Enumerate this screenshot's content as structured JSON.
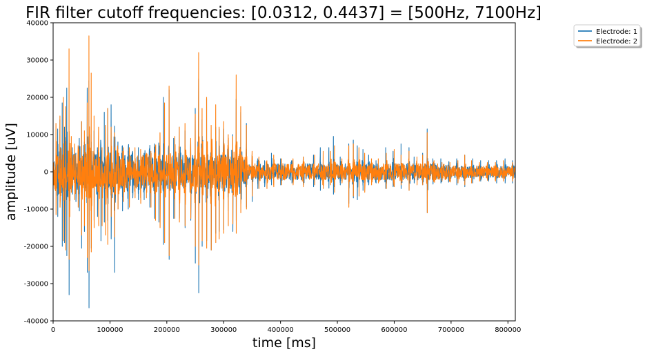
{
  "chart_data": {
    "type": "line",
    "title": "FIR filter cutoff frequencies: [0.0312, 0.4437] = [500Hz, 7100Hz]",
    "xlabel": "time [ms]",
    "ylabel": "amplitude [uV]",
    "xlim": [
      0,
      813000
    ],
    "ylim": [
      -40000,
      40000
    ],
    "xticks": [
      0,
      100000,
      200000,
      300000,
      400000,
      500000,
      600000,
      700000,
      800000
    ],
    "yticks": [
      -40000,
      -30000,
      -20000,
      -10000,
      0,
      10000,
      20000,
      30000,
      40000
    ],
    "grid": false,
    "legend_position": "upper-right-outside",
    "series": [
      {
        "name": "Electrode: 1",
        "color": "#1f77b4",
        "spikes": [
          [
            8000,
            11500,
            -12000
          ],
          [
            12000,
            14000,
            -8000
          ],
          [
            16000,
            18500,
            -20000
          ],
          [
            20000,
            12000,
            -19000
          ],
          [
            24000,
            22500,
            -22500
          ],
          [
            28000,
            10000,
            -33000
          ],
          [
            34000,
            6500,
            -6000
          ],
          [
            40000,
            5000,
            -8000
          ],
          [
            46000,
            9000,
            -10500
          ],
          [
            50000,
            13500,
            -20500
          ],
          [
            55000,
            8000,
            -16000
          ],
          [
            60000,
            22500,
            -27000
          ],
          [
            63000,
            24500,
            -36500
          ],
          [
            67000,
            8000,
            -20500
          ],
          [
            72000,
            11000,
            -13000
          ],
          [
            78000,
            6500,
            -12000
          ],
          [
            84000,
            7500,
            -18500
          ],
          [
            90000,
            16000,
            -13500
          ],
          [
            96000,
            17000,
            -13000
          ],
          [
            102000,
            18000,
            -18000
          ],
          [
            108000,
            12000,
            -27000
          ],
          [
            114000,
            8000,
            -10000
          ],
          [
            122000,
            7000,
            -10500
          ],
          [
            132000,
            5500,
            -10000
          ],
          [
            140000,
            5500,
            -7000
          ],
          [
            150000,
            6500,
            -7500
          ],
          [
            160000,
            5000,
            -7500
          ],
          [
            170000,
            5500,
            -9500
          ],
          [
            178000,
            7500,
            -12500
          ],
          [
            186000,
            7500,
            -13500
          ],
          [
            194000,
            20000,
            -19500
          ],
          [
            204000,
            22000,
            -23500
          ],
          [
            212000,
            9000,
            -12500
          ],
          [
            222000,
            12000,
            -12500
          ],
          [
            232000,
            11000,
            -15000
          ],
          [
            242000,
            7500,
            -13000
          ],
          [
            250000,
            17000,
            -24500
          ],
          [
            256000,
            25000,
            -32500
          ],
          [
            262000,
            14000,
            -20000
          ],
          [
            270000,
            19500,
            -18500
          ],
          [
            278000,
            8500,
            -21000
          ],
          [
            286000,
            12000,
            -16500
          ],
          [
            292000,
            11500,
            -16000
          ],
          [
            300000,
            11500,
            -15500
          ],
          [
            308000,
            8500,
            -10500
          ],
          [
            316000,
            10000,
            -16000
          ],
          [
            322000,
            19500,
            -13000
          ],
          [
            330000,
            16000,
            -8500
          ],
          [
            340000,
            13000,
            -9500
          ],
          [
            350000,
            4500,
            -8000
          ],
          [
            360000,
            3500,
            -4500
          ],
          [
            372000,
            3000,
            -4000
          ],
          [
            384000,
            5000,
            -3500
          ],
          [
            400000,
            3500,
            -3500
          ],
          [
            420000,
            3000,
            -3000
          ],
          [
            440000,
            4000,
            -3500
          ],
          [
            458000,
            4500,
            -4000
          ],
          [
            470000,
            6500,
            -5000
          ],
          [
            485000,
            6500,
            -3000
          ],
          [
            493000,
            9500,
            -6000
          ],
          [
            505000,
            4000,
            -3500
          ],
          [
            520000,
            7500,
            -8500
          ],
          [
            528000,
            8500,
            -7000
          ],
          [
            535000,
            7000,
            -7500
          ],
          [
            545000,
            6000,
            -5000
          ],
          [
            555000,
            4500,
            -3500
          ],
          [
            568000,
            3000,
            -3000
          ],
          [
            585000,
            6500,
            -4500
          ],
          [
            598000,
            5500,
            -4000
          ],
          [
            612000,
            7500,
            -4500
          ],
          [
            626000,
            6500,
            -5000
          ],
          [
            635000,
            4000,
            -3000
          ],
          [
            650000,
            5000,
            -3500
          ],
          [
            658000,
            11500,
            -11000
          ],
          [
            668000,
            3500,
            -2500
          ],
          [
            682000,
            3500,
            -3000
          ],
          [
            696000,
            2500,
            -2500
          ],
          [
            710000,
            3500,
            -3500
          ],
          [
            724000,
            4500,
            -4000
          ],
          [
            738000,
            3500,
            -3000
          ],
          [
            752000,
            3000,
            -2500
          ],
          [
            766000,
            3000,
            -2500
          ],
          [
            780000,
            3000,
            -3000
          ],
          [
            795000,
            3500,
            -3000
          ],
          [
            808000,
            3000,
            -3000
          ]
        ]
      },
      {
        "name": "Electrode: 2",
        "color": "#ff7f0e",
        "spikes": [
          [
            5000,
            13000,
            -11500
          ],
          [
            12000,
            15000,
            -9500
          ],
          [
            18000,
            20000,
            -18500
          ],
          [
            22000,
            17500,
            -21000
          ],
          [
            28000,
            33000,
            -23500
          ],
          [
            32000,
            9500,
            -5500
          ],
          [
            38000,
            7500,
            -7500
          ],
          [
            44000,
            7000,
            -9500
          ],
          [
            50000,
            13500,
            -17000
          ],
          [
            55000,
            11000,
            -14500
          ],
          [
            60000,
            18500,
            -23000
          ],
          [
            63000,
            36500,
            -26500
          ],
          [
            67000,
            26500,
            -21500
          ],
          [
            72000,
            15000,
            -15000
          ],
          [
            80000,
            12000,
            -14500
          ],
          [
            86000,
            6500,
            -14500
          ],
          [
            92000,
            12500,
            -17000
          ],
          [
            96000,
            17000,
            -19500
          ],
          [
            102000,
            12000,
            -12000
          ],
          [
            108000,
            10500,
            -17500
          ],
          [
            114000,
            6000,
            -10000
          ],
          [
            124000,
            6500,
            -8000
          ],
          [
            134000,
            6500,
            -9500
          ],
          [
            144000,
            6500,
            -7000
          ],
          [
            154000,
            6000,
            -8500
          ],
          [
            164000,
            5000,
            -7000
          ],
          [
            172000,
            5500,
            -9500
          ],
          [
            180000,
            7000,
            -13000
          ],
          [
            188000,
            10500,
            -15000
          ],
          [
            196000,
            18500,
            -19000
          ],
          [
            204000,
            23000,
            -22500
          ],
          [
            214000,
            9500,
            -12500
          ],
          [
            222000,
            12000,
            -13500
          ],
          [
            232000,
            13000,
            -14500
          ],
          [
            242000,
            9000,
            -12500
          ],
          [
            250000,
            15500,
            -20000
          ],
          [
            256000,
            32000,
            -25000
          ],
          [
            262000,
            17000,
            -18500
          ],
          [
            270000,
            20000,
            -20500
          ],
          [
            278000,
            12500,
            -21000
          ],
          [
            286000,
            18000,
            -19000
          ],
          [
            292000,
            12000,
            -18000
          ],
          [
            300000,
            13500,
            -16500
          ],
          [
            308000,
            10000,
            -14500
          ],
          [
            316000,
            9500,
            -14000
          ],
          [
            322000,
            26000,
            -16500
          ],
          [
            330000,
            17500,
            -11000
          ],
          [
            340000,
            12500,
            -10000
          ],
          [
            350000,
            5500,
            -6500
          ],
          [
            362000,
            4000,
            -4500
          ],
          [
            376000,
            3000,
            -4500
          ],
          [
            388000,
            4500,
            -4000
          ],
          [
            402000,
            3500,
            -3500
          ],
          [
            422000,
            3500,
            -3500
          ],
          [
            440000,
            4000,
            -4000
          ],
          [
            460000,
            4500,
            -3500
          ],
          [
            475000,
            5500,
            -4500
          ],
          [
            488000,
            5500,
            -3500
          ],
          [
            495000,
            7000,
            -5500
          ],
          [
            508000,
            3500,
            -3000
          ],
          [
            520000,
            7000,
            -9500
          ],
          [
            528000,
            7500,
            -6500
          ],
          [
            538000,
            6500,
            -6500
          ],
          [
            548000,
            5000,
            -5500
          ],
          [
            560000,
            3500,
            -3500
          ],
          [
            572000,
            3500,
            -3000
          ],
          [
            586000,
            5000,
            -4500
          ],
          [
            600000,
            6000,
            -4000
          ],
          [
            612000,
            4500,
            -3500
          ],
          [
            626000,
            5500,
            -5000
          ],
          [
            640000,
            4000,
            -3500
          ],
          [
            650000,
            4500,
            -3500
          ],
          [
            658000,
            10500,
            -11000
          ],
          [
            670000,
            3000,
            -2500
          ],
          [
            684000,
            2500,
            -2500
          ],
          [
            698000,
            2500,
            -2000
          ],
          [
            712000,
            3000,
            -3000
          ],
          [
            724000,
            4500,
            -3500
          ],
          [
            736000,
            3000,
            -3000
          ],
          [
            750000,
            2500,
            -2500
          ],
          [
            764000,
            2500,
            -2000
          ],
          [
            778000,
            2500,
            -2500
          ],
          [
            792000,
            3000,
            -2500
          ],
          [
            808000,
            2500,
            -2500
          ]
        ]
      }
    ]
  }
}
